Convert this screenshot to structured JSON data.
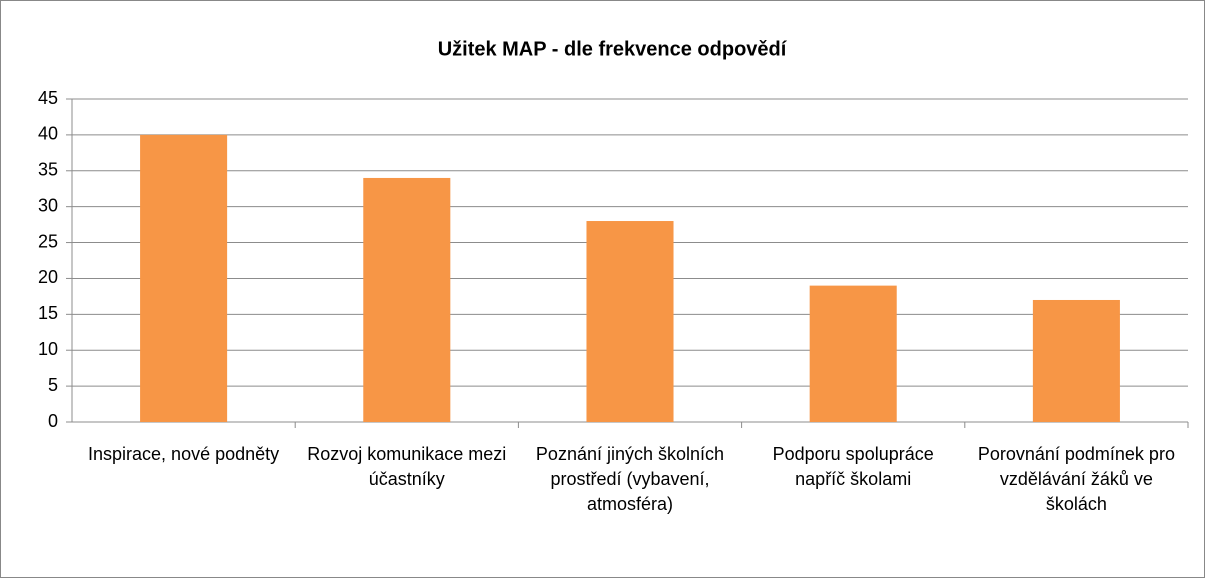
{
  "chart_data": {
    "type": "bar",
    "title": "Užitek MAP - dle frekvence odpovědí",
    "categories": [
      "Inspirace, nové podněty",
      "Rozvoj komunikace mezi účastníky",
      "Poznání jiných školních prostředí (vybavení, atmosféra)",
      "Podporu spolupráce napříč školami",
      "Porovnání podmínek pro vzdělávání žáků ve školách"
    ],
    "values": [
      40,
      34,
      28,
      19,
      17
    ],
    "color": "#f79646",
    "ylim": [
      0,
      45
    ],
    "yticks": [
      0,
      5,
      10,
      15,
      20,
      25,
      30,
      35,
      40,
      45
    ],
    "grid": true
  }
}
